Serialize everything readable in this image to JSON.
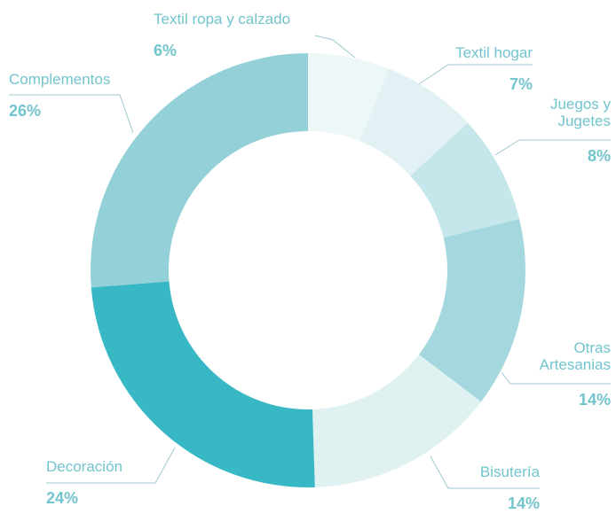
{
  "chart_data": {
    "type": "donut",
    "categories": [
      "Textil ropa y calzado",
      "Textil hogar",
      "Juegos y Jugetes",
      "Otras Artesanias",
      "Bisutería",
      "Decoración",
      "Complementos"
    ],
    "values": [
      6,
      7,
      8,
      14,
      14,
      24,
      26
    ],
    "value_labels": [
      "6%",
      "7%",
      "8%",
      "14%",
      "14%",
      "24%",
      "26%"
    ],
    "colors": [
      "#eef7f8",
      "#e2f2f4",
      "#c5e6ea",
      "#a5d8de",
      "#e0f1f2",
      "#38b8c4",
      "#93d0d8"
    ]
  }
}
